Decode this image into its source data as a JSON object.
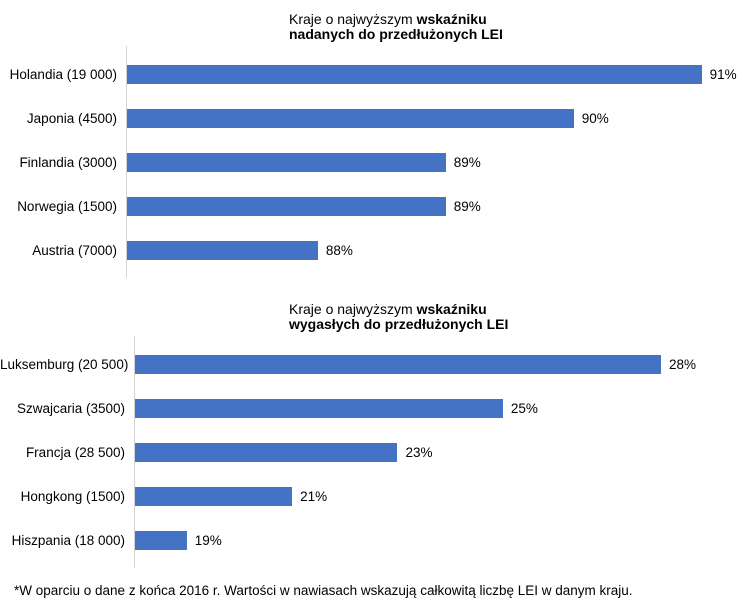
{
  "colors": {
    "bar": "#4472c4",
    "axis_line": "#d2d2d2",
    "text": "#000000",
    "background": "#ffffff"
  },
  "footnote": "*W oparciu o dane z końca 2016 r. Wartości w nawiasach wskazują całkowitą liczbę LEI w danym kraju.",
  "chart_data": [
    {
      "type": "bar",
      "orientation": "horizontal",
      "title_lines": [
        [
          {
            "text": "Kraje o najwyższym ",
            "bold": false
          },
          {
            "text": "wskaźniku",
            "bold": true
          }
        ],
        [
          {
            "text": "nadanych do przedłużonych LEI",
            "bold": true
          }
        ]
      ],
      "categories": [
        "Holandia (19 000)",
        "Japonia (4500)",
        "Finlandia (3000)",
        "Norwegia (1500)",
        "Austria (7000)"
      ],
      "values": [
        91,
        90,
        89,
        89,
        88
      ],
      "value_labels": [
        "91%",
        "90%",
        "89%",
        "89%",
        "88%"
      ],
      "unit": "%",
      "xlim": [
        86.5,
        91.3
      ],
      "grid": false,
      "legend": false,
      "xlabel": "",
      "ylabel": ""
    },
    {
      "type": "bar",
      "orientation": "horizontal",
      "title_lines": [
        [
          {
            "text": "Kraje o najwyższym ",
            "bold": false
          },
          {
            "text": "wskaźniku",
            "bold": true
          }
        ],
        [
          {
            "text": "wygasłych do przedłużonych LEI",
            "bold": true
          }
        ]
      ],
      "categories": [
        "Luksemburg (20 500)",
        "Szwajcaria (3500)",
        "Francja (28 500)",
        "Hongkong (1500)",
        "Hiszpania (18 000)"
      ],
      "values": [
        28,
        25,
        23,
        21,
        19
      ],
      "value_labels": [
        "28%",
        "25%",
        "23%",
        "21%",
        "19%"
      ],
      "unit": "%",
      "xlim": [
        18,
        29.5
      ],
      "grid": false,
      "legend": false,
      "xlabel": "",
      "ylabel": ""
    }
  ]
}
